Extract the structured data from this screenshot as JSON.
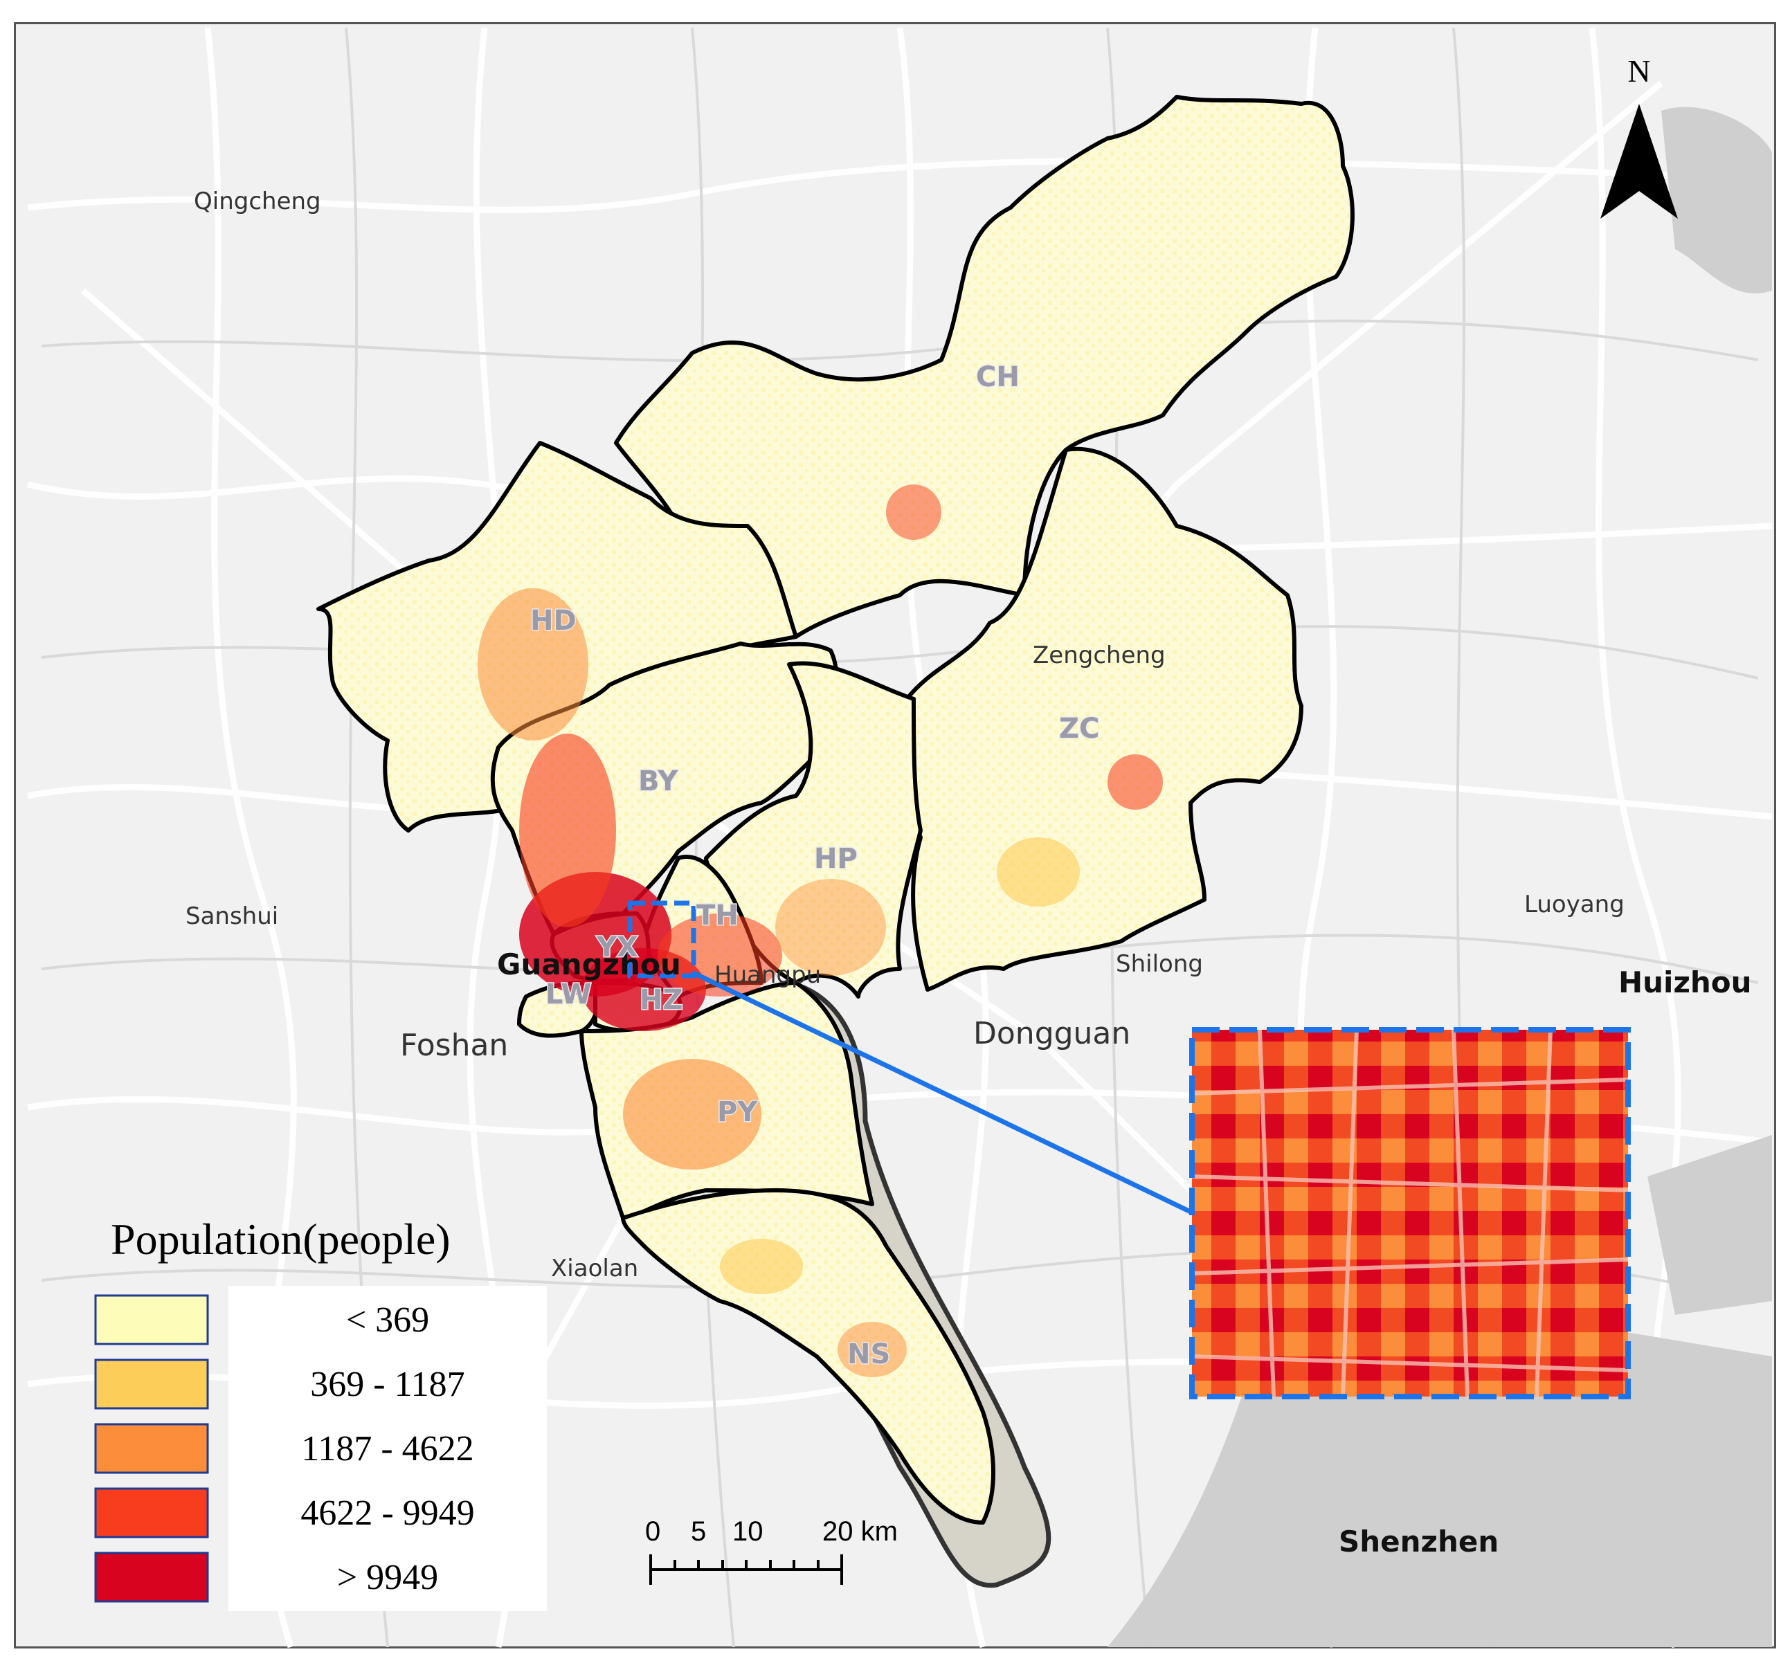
{
  "north_arrow": {
    "label": "N"
  },
  "places": [
    {
      "key": "qingcheng",
      "label": "Qingcheng"
    },
    {
      "key": "sanshui",
      "label": "Sanshui"
    },
    {
      "key": "foshan",
      "label": "Foshan"
    },
    {
      "key": "xiaolan",
      "label": "Xiaolan"
    },
    {
      "key": "zengcheng",
      "label": "Zengcheng"
    },
    {
      "key": "shilong",
      "label": "Shilong"
    },
    {
      "key": "dongguan",
      "label": "Dongguan"
    },
    {
      "key": "luoyang",
      "label": "Luoyang"
    },
    {
      "key": "huangpu",
      "label": "Huangpu"
    }
  ],
  "cities": [
    {
      "key": "guangzhou",
      "label": "Guangzhou"
    },
    {
      "key": "huizhou",
      "label": "Huizhou"
    },
    {
      "key": "shenzhen",
      "label": "Shenzhen"
    }
  ],
  "districts": [
    {
      "key": "ch",
      "label": "CH"
    },
    {
      "key": "hd",
      "label": "HD"
    },
    {
      "key": "zc",
      "label": "ZC"
    },
    {
      "key": "by",
      "label": "BY"
    },
    {
      "key": "hp",
      "label": "HP"
    },
    {
      "key": "th",
      "label": "TH"
    },
    {
      "key": "yx",
      "label": "YX"
    },
    {
      "key": "lw",
      "label": "LW"
    },
    {
      "key": "hz",
      "label": "HZ"
    },
    {
      "key": "py",
      "label": "PY"
    },
    {
      "key": "ns",
      "label": "NS"
    }
  ],
  "legend": {
    "title": "Population(people)",
    "classes": [
      {
        "label": "<  369",
        "color": "#fdfcb9"
      },
      {
        "label": "369 - 1187",
        "color": "#fdcd5a"
      },
      {
        "label": "1187 - 4622",
        "color": "#fc8d3a"
      },
      {
        "label": "4622 - 9949",
        "color": "#f83d1e"
      },
      {
        "label": ">  9949",
        "color": "#d8031f"
      }
    ]
  },
  "scale_bar": {
    "ticks": [
      "0",
      "5",
      "10",
      "20 km"
    ]
  },
  "colors": {
    "boundary": "#000000",
    "inset_border": "#1d74e8",
    "water": "#cfcfcf",
    "road": "#ffffff"
  }
}
